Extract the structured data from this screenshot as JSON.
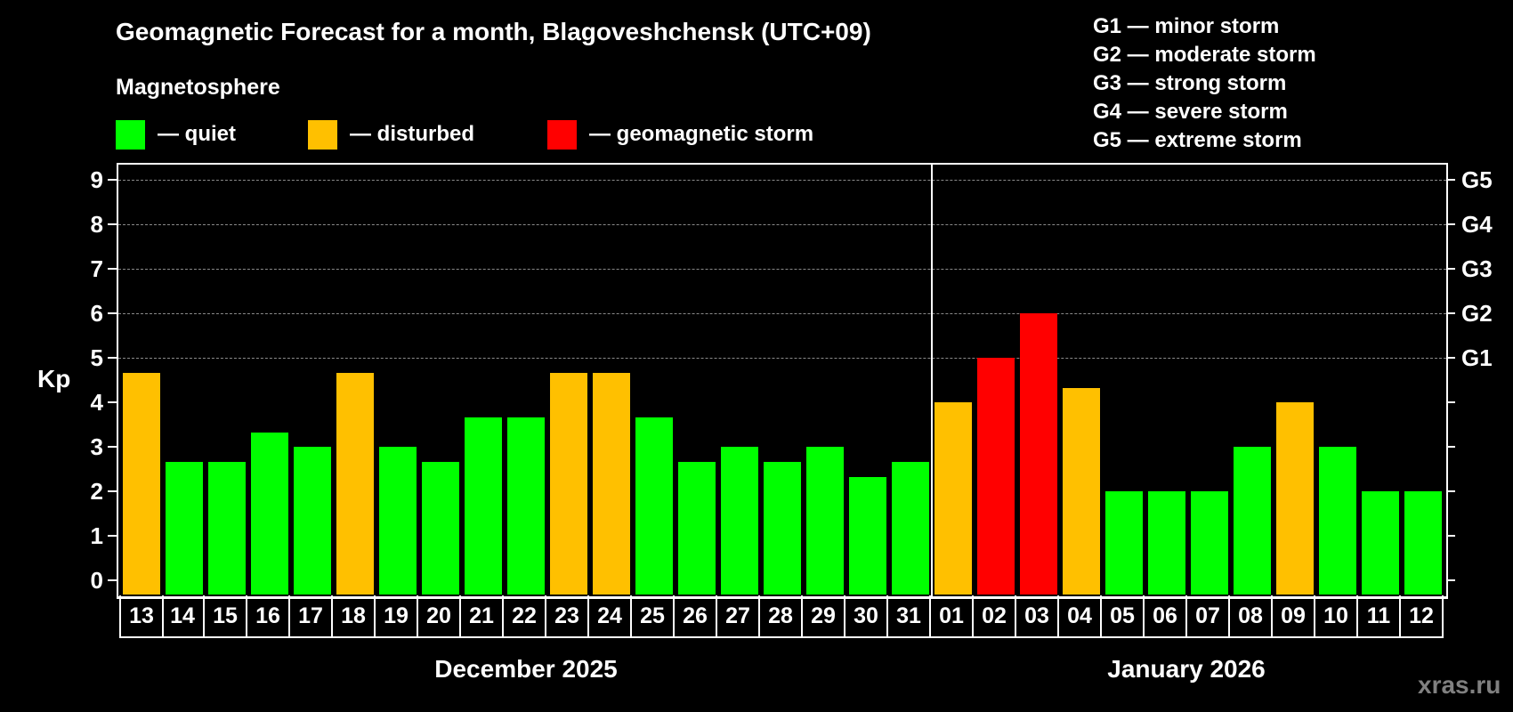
{
  "header": {
    "title": "Geomagnetic Forecast for a month, Blagoveshchensk (UTC+09)",
    "subtitle": "Magnetosphere"
  },
  "legend": [
    {
      "label": "— quiet",
      "color": "#00ff00"
    },
    {
      "label": "— disturbed",
      "color": "#ffc000"
    },
    {
      "label": "— geomagnetic storm",
      "color": "#ff0000"
    }
  ],
  "storm_scale": [
    "G1 — minor storm",
    "G2 — moderate storm",
    "G3 — strong storm",
    "G4 — severe storm",
    "G5 — extreme storm"
  ],
  "axis": {
    "ylabel": "Kp",
    "yticks": [
      "0",
      "1",
      "2",
      "3",
      "4",
      "5",
      "6",
      "7",
      "8",
      "9"
    ],
    "right_labels": [
      {
        "kp": 5,
        "label": "G1"
      },
      {
        "kp": 6,
        "label": "G2"
      },
      {
        "kp": 7,
        "label": "G3"
      },
      {
        "kp": 8,
        "label": "G4"
      },
      {
        "kp": 9,
        "label": "G5"
      }
    ]
  },
  "months": {
    "first": "December 2025",
    "second": "January 2026"
  },
  "footer": {
    "brand": "xras.ru"
  },
  "chart_data": {
    "type": "bar",
    "title": "Geomagnetic Forecast for a month, Blagoveshchensk (UTC+09)",
    "xlabel": "",
    "ylabel": "Kp",
    "ylim": [
      0,
      9
    ],
    "grid": true,
    "legend_position": "top",
    "categories": [
      "13",
      "14",
      "15",
      "16",
      "17",
      "18",
      "19",
      "20",
      "21",
      "22",
      "23",
      "24",
      "25",
      "26",
      "27",
      "28",
      "29",
      "30",
      "31",
      "01",
      "02",
      "03",
      "04",
      "05",
      "06",
      "07",
      "08",
      "09",
      "10",
      "11",
      "12"
    ],
    "month_groups": [
      {
        "label": "December 2025",
        "start": 0,
        "end": 18
      },
      {
        "label": "January 2026",
        "start": 19,
        "end": 30
      }
    ],
    "values": [
      4.67,
      2.67,
      2.67,
      3.33,
      3.0,
      4.67,
      3.0,
      2.67,
      3.67,
      3.67,
      4.67,
      4.67,
      3.67,
      2.67,
      3.0,
      2.67,
      3.0,
      2.33,
      2.67,
      4.0,
      5.0,
      6.0,
      4.33,
      2.0,
      2.0,
      2.0,
      3.0,
      4.0,
      3.0,
      2.0,
      2.0
    ],
    "status": [
      "disturbed",
      "quiet",
      "quiet",
      "quiet",
      "quiet",
      "disturbed",
      "quiet",
      "quiet",
      "quiet",
      "quiet",
      "disturbed",
      "disturbed",
      "quiet",
      "quiet",
      "quiet",
      "quiet",
      "quiet",
      "quiet",
      "quiet",
      "disturbed",
      "storm",
      "storm",
      "disturbed",
      "quiet",
      "quiet",
      "quiet",
      "quiet",
      "disturbed",
      "quiet",
      "quiet",
      "quiet"
    ],
    "status_colors": {
      "quiet": "#00ff00",
      "disturbed": "#ffc000",
      "storm": "#ff0000"
    },
    "right_axis_labels": {
      "5": "G1",
      "6": "G2",
      "7": "G3",
      "8": "G4",
      "9": "G5"
    }
  }
}
